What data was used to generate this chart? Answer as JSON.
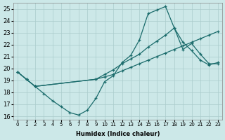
{
  "xlabel": "Humidex (Indice chaleur)",
  "bg_color": "#cce8e8",
  "line_color": "#1a6b6b",
  "grid_color": "#aacccc",
  "xlim": [
    -0.5,
    23.5
  ],
  "ylim": [
    15.7,
    25.5
  ],
  "xticks": [
    0,
    1,
    2,
    3,
    4,
    5,
    6,
    7,
    8,
    9,
    10,
    11,
    12,
    13,
    14,
    15,
    16,
    17,
    18,
    19,
    20,
    21,
    22,
    23
  ],
  "yticks": [
    16,
    17,
    18,
    19,
    20,
    21,
    22,
    23,
    24,
    25
  ],
  "line1_x": [
    0,
    1,
    2,
    3,
    4,
    5,
    6,
    7,
    8,
    9,
    10,
    11,
    12,
    13,
    14,
    15,
    16,
    17,
    18,
    19,
    20,
    21,
    22,
    23
  ],
  "line1_y": [
    19.7,
    19.1,
    18.5,
    17.9,
    17.3,
    16.8,
    16.3,
    16.1,
    16.5,
    17.5,
    18.9,
    19.4,
    20.5,
    21.1,
    22.4,
    24.6,
    24.9,
    25.2,
    23.4,
    22.2,
    21.5,
    20.7,
    20.3,
    20.5
  ],
  "line2_x": [
    0,
    1,
    2,
    9,
    10,
    11,
    12,
    13,
    14,
    15,
    16,
    17,
    18,
    19,
    20,
    21,
    22,
    23
  ],
  "line2_y": [
    19.7,
    19.1,
    18.5,
    19.1,
    19.5,
    19.9,
    20.4,
    20.8,
    21.2,
    21.8,
    22.3,
    22.8,
    23.4,
    21.6,
    22.1,
    21.2,
    20.4,
    20.4
  ],
  "line3_x": [
    0,
    1,
    2,
    9,
    10,
    11,
    12,
    13,
    14,
    15,
    16,
    17,
    18,
    19,
    20,
    21,
    22,
    23
  ],
  "line3_y": [
    19.7,
    19.1,
    18.5,
    19.1,
    19.3,
    19.5,
    19.8,
    20.1,
    20.4,
    20.7,
    21.0,
    21.3,
    21.6,
    21.9,
    22.2,
    22.5,
    22.8,
    23.1
  ]
}
